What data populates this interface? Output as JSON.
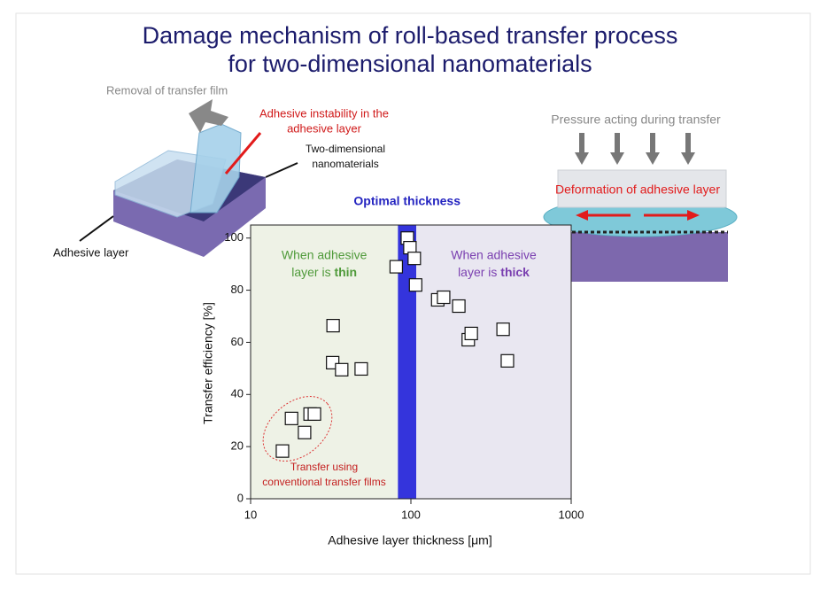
{
  "slide": {
    "title_lines": [
      "Damage mechanism of roll-based transfer process",
      "for two-dimensional nanomaterials"
    ],
    "left_figure": {
      "removal": "Removal of transfer film",
      "instability": [
        "Adhesive instability in the",
        "adhesive layer"
      ],
      "nanomaterials": [
        "Two-dimensional",
        "nanomaterials"
      ],
      "adhesive": "Adhesive layer"
    },
    "right_figure": {
      "pressure": "Pressure acting during transfer",
      "deformation": "Deformation of adhesive layer"
    }
  },
  "chart_data": {
    "type": "scatter",
    "xlabel": "Adhesive layer thickness [μm]",
    "ylabel": "Transfer efficiency [%]",
    "xscale": "log",
    "xlim": [
      10,
      1000
    ],
    "xticks": [
      10,
      100,
      1000
    ],
    "ylim": [
      0,
      105
    ],
    "yticks": [
      0,
      20,
      40,
      60,
      80,
      100
    ],
    "bands": [
      {
        "x": [
          10,
          83
        ],
        "color": "#eef2e6",
        "label": {
          "line1": "When adhesive",
          "line2": "layer is ",
          "emphasis": "thin"
        },
        "label_color": "#4f9a3a"
      },
      {
        "x": [
          83,
          108
        ],
        "color": "#3434dc",
        "label": {
          "line1": "Optimal thickness"
        },
        "label_color": "#2424c0"
      },
      {
        "x": [
          108,
          1000
        ],
        "color": "#e9e7f1",
        "label": {
          "line1": "When adhesive",
          "line2": "layer is ",
          "emphasis": "thick"
        },
        "label_color": "#7a3fb0"
      }
    ],
    "annotation": [
      "Transfer using",
      "conventional transfer films"
    ],
    "series": [
      {
        "color": "#ffffff",
        "x": [
          15.8,
          18,
          21.7,
          23.5,
          25,
          32.7,
          32.5,
          37,
          49,
          81,
          95,
          98.6,
          105,
          107,
          147,
          160,
          199,
          228,
          238,
          376,
          400
        ],
        "values": [
          18.3,
          30.8,
          25.4,
          32.5,
          32.5,
          66.4,
          52.2,
          49.5,
          49.8,
          89,
          100,
          96.3,
          92.2,
          82,
          76.3,
          77.3,
          73.9,
          61,
          63.4,
          65,
          52.9
        ]
      }
    ]
  }
}
